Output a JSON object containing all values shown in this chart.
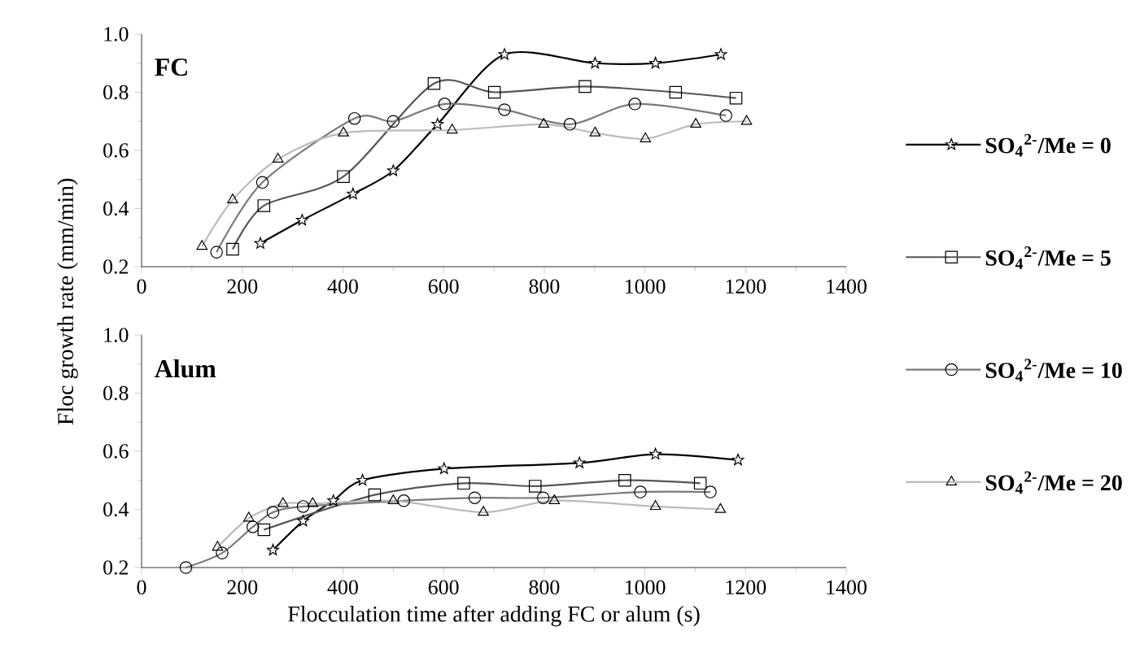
{
  "chart_data": [
    {
      "type": "line",
      "title": "FC",
      "ylabel": "Floc growth rate (mm/min)",
      "xlim": [
        0,
        1400
      ],
      "ylim": [
        0.2,
        1.0
      ],
      "xticks": [
        0,
        200,
        400,
        600,
        800,
        1000,
        1200,
        1400
      ],
      "yticks": [
        0.2,
        0.4,
        0.6,
        0.8,
        {
          "value": 1.0,
          "label": "1.0"
        }
      ],
      "grid": false,
      "legend": "right",
      "line_style": "solid",
      "series": [
        {
          "name": "SO$_{4}$$^{2-}$/Me = 0",
          "color": "#000000",
          "marker": "star",
          "x": [
            236,
            319,
            420,
            500,
            588,
            721,
            901,
            1021,
            1151
          ],
          "values": [
            0.28,
            0.36,
            0.45,
            0.53,
            0.69,
            0.93,
            0.9,
            0.9,
            0.93
          ]
        },
        {
          "name": "SO$_{4}$$^{2-}$/Me = 5",
          "color": "#555555",
          "marker": "square",
          "x": [
            181,
            243,
            401,
            581,
            701,
            881,
            1061,
            1181
          ],
          "values": [
            0.26,
            0.41,
            0.51,
            0.83,
            0.8,
            0.82,
            0.8,
            0.78
          ]
        },
        {
          "name": "SO$_{4}$$^{2-}$/Me = 10",
          "color": "#7a7a7a",
          "marker": "circle",
          "x": [
            149,
            240,
            423,
            500,
            602,
            721,
            851,
            980,
            1161
          ],
          "values": [
            0.25,
            0.49,
            0.71,
            0.7,
            0.76,
            0.74,
            0.69,
            0.76,
            0.72
          ]
        },
        {
          "name": "SO$_{4}$$^{2-}$/Me = 20",
          "color": "#bbbbbb",
          "marker": "triangle",
          "x": [
            120,
            181,
            271,
            401,
            617,
            799,
            901,
            1001,
            1101,
            1202
          ],
          "values": [
            0.27,
            0.43,
            0.57,
            0.66,
            0.67,
            0.69,
            0.66,
            0.64,
            0.69,
            0.7
          ]
        }
      ]
    },
    {
      "type": "line",
      "title": "Alum",
      "xlabel": "Flocculation time after adding FC or alum (s)",
      "xlim": [
        0,
        1400
      ],
      "ylim": [
        0.2,
        1.0
      ],
      "xticks": [
        0,
        200,
        400,
        600,
        800,
        1000,
        1200,
        1400
      ],
      "yticks": [
        0.2,
        0.4,
        0.6,
        0.8,
        {
          "value": 1.0,
          "label": "1.0"
        }
      ],
      "grid": false,
      "legend": false,
      "line_style": "solid",
      "series": [
        {
          "color": "#000000",
          "marker": "star",
          "x": [
            261,
            321,
            381,
            439,
            601,
            870,
            1021,
            1185
          ],
          "values": [
            0.26,
            0.36,
            0.43,
            0.5,
            0.54,
            0.56,
            0.59,
            0.57
          ]
        },
        {
          "color": "#555555",
          "marker": "square",
          "x": [
            243,
            463,
            640,
            782,
            960,
            1110
          ],
          "values": [
            0.33,
            0.45,
            0.49,
            0.48,
            0.5,
            0.49
          ]
        },
        {
          "color": "#7a7a7a",
          "marker": "circle",
          "x": [
            88,
            160,
            221,
            261,
            321,
            521,
            662,
            798,
            991,
            1130
          ],
          "values": [
            0.2,
            0.25,
            0.34,
            0.39,
            0.41,
            0.43,
            0.44,
            0.44,
            0.46,
            0.46
          ]
        },
        {
          "color": "#bbbbbb",
          "marker": "triangle",
          "x": [
            151,
            213,
            281,
            340,
            500,
            679,
            820,
            1021,
            1150
          ],
          "values": [
            0.27,
            0.37,
            0.42,
            0.42,
            0.43,
            0.39,
            0.43,
            0.41,
            0.4
          ]
        }
      ]
    }
  ]
}
